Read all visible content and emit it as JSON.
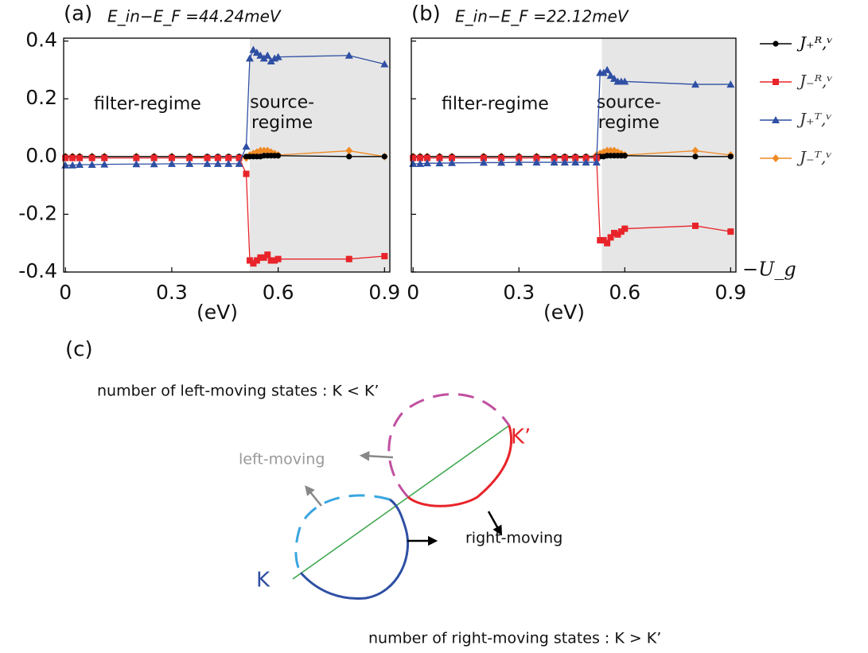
{
  "chart_data": [
    {
      "type": "line",
      "panel": "(a)",
      "title": "E_in−E_F =44.24meV",
      "x": [
        0,
        0.02,
        0.04,
        0.075,
        0.11,
        0.2,
        0.25,
        0.3,
        0.35,
        0.4,
        0.43,
        0.46,
        0.49,
        0.51,
        0.52,
        0.53,
        0.54,
        0.55,
        0.56,
        0.57,
        0.58,
        0.59,
        0.6,
        0.8,
        0.9
      ],
      "series": [
        {
          "color": "#000000",
          "marker": "circle",
          "values": [
            0,
            0,
            0,
            0,
            0,
            0,
            0,
            0,
            0,
            0,
            0,
            0,
            0,
            0,
            0,
            0,
            0,
            0,
            0.003,
            0.003,
            0.003,
            0.003,
            0.003,
            0,
            0
          ]
        },
        {
          "color": "#e8242a",
          "marker": "square",
          "values": [
            -0.005,
            -0.005,
            -0.005,
            -0.005,
            -0.005,
            -0.005,
            -0.005,
            -0.005,
            -0.005,
            -0.005,
            -0.005,
            -0.005,
            -0.005,
            -0.06,
            -0.36,
            -0.37,
            -0.36,
            -0.35,
            -0.35,
            -0.34,
            -0.36,
            -0.36,
            -0.355,
            -0.355,
            -0.345
          ]
        },
        {
          "color": "#2e4fa3",
          "marker": "triangle",
          "values": [
            -0.03,
            -0.03,
            -0.028,
            -0.028,
            -0.027,
            -0.026,
            -0.026,
            -0.025,
            -0.025,
            -0.025,
            -0.025,
            -0.025,
            -0.025,
            0.035,
            0.34,
            0.37,
            0.36,
            0.35,
            0.34,
            0.35,
            0.33,
            0.34,
            0.345,
            0.35,
            0.32
          ]
        },
        {
          "color": "#f08a24",
          "marker": "diamond",
          "values": [
            0,
            0,
            0,
            0,
            0,
            0,
            0,
            0,
            0,
            -0.005,
            -0.005,
            -0.005,
            -0.005,
            -0.005,
            0.005,
            0.01,
            0.015,
            0.02,
            0.02,
            0.02,
            0.015,
            0.01,
            0.005,
            0.02,
            0
          ]
        }
      ],
      "xlim": [
        -0.005,
        0.915
      ],
      "xticks": [
        0,
        0.3,
        0.6,
        0.9
      ],
      "x_label": "(eV)",
      "ylim": [
        -0.4,
        0.41
      ],
      "yticks": [
        {
          "value": -0.4,
          "label": "-0.4"
        },
        {
          "value": -0.2,
          "label": "-0.2"
        },
        {
          "value": 0,
          "label": "0.0"
        },
        0.2,
        0.4
      ],
      "ytick_labels": true,
      "shaded_region": [
        0.52,
        0.915
      ],
      "annotations": [
        "filter-regime",
        "source-",
        "regime"
      ]
    },
    {
      "type": "line",
      "panel": "(b)",
      "title": "E_in−E_F =22.12meV",
      "x": [
        0,
        0.02,
        0.04,
        0.075,
        0.11,
        0.2,
        0.25,
        0.3,
        0.35,
        0.4,
        0.43,
        0.46,
        0.49,
        0.52,
        0.53,
        0.54,
        0.55,
        0.56,
        0.57,
        0.58,
        0.59,
        0.6,
        0.8,
        0.9
      ],
      "series": [
        {
          "name": "J₊ᴿ,ᵛ",
          "color": "#000000",
          "marker": "circle",
          "values": [
            0,
            0,
            0,
            0,
            0,
            0,
            0,
            0,
            0,
            0,
            0,
            0,
            0,
            0,
            0,
            0,
            0.003,
            0.003,
            0.003,
            0.003,
            0.003,
            0.003,
            0,
            0
          ]
        },
        {
          "name": "J₋ᴿ,ᵛ",
          "color": "#e8242a",
          "marker": "square",
          "values": [
            -0.005,
            -0.005,
            -0.005,
            -0.005,
            -0.005,
            -0.005,
            -0.005,
            -0.005,
            -0.005,
            -0.005,
            -0.005,
            -0.005,
            -0.005,
            -0.005,
            -0.29,
            -0.29,
            -0.3,
            -0.28,
            -0.265,
            -0.27,
            -0.26,
            -0.25,
            -0.24,
            -0.26
          ]
        },
        {
          "name": "J₊ᵀ,ᵛ",
          "color": "#2e4fa3",
          "marker": "triangle",
          "values": [
            -0.025,
            -0.025,
            -0.023,
            -0.023,
            -0.022,
            -0.021,
            -0.021,
            -0.02,
            -0.02,
            -0.02,
            -0.02,
            -0.02,
            -0.02,
            -0.02,
            0.29,
            0.29,
            0.3,
            0.28,
            0.27,
            0.26,
            0.26,
            0.26,
            0.25,
            0.25
          ]
        },
        {
          "name": "J₋ᵀ,ᵛ",
          "color": "#f08a24",
          "marker": "diamond",
          "values": [
            0,
            0,
            0,
            0,
            0,
            0,
            0,
            0,
            0,
            -0.003,
            -0.003,
            -0.003,
            -0.003,
            0.005,
            0.01,
            0.015,
            0.02,
            0.02,
            0.02,
            0.015,
            0.01,
            0.005,
            0.02,
            0.005
          ]
        }
      ],
      "xlim": [
        -0.005,
        0.915
      ],
      "xticks": [
        0,
        0.3,
        0.6,
        0.9
      ],
      "x_label": "(eV)",
      "x_quantity": "−U_g",
      "ylim": [
        -0.4,
        0.41
      ],
      "yticks": [
        {
          "value": -0.4,
          "label": "-0.4"
        },
        {
          "value": -0.2,
          "label": "-0.2"
        },
        {
          "value": 0,
          "label": "0.0"
        },
        0.2,
        0.4
      ],
      "ytick_labels": false,
      "shaded_region": [
        0.535,
        0.915
      ],
      "annotations": [
        "filter-regime",
        "source-",
        "regime"
      ],
      "legend": "outside right"
    }
  ],
  "diagram": {
    "panel": "(c)",
    "top_caption": "number of left-moving states : K < K’",
    "left_label": "left-moving",
    "kprime": "K’",
    "right_label": "right-moving",
    "k": "K",
    "bottom_caption": "number of right-moving states : K > K’"
  }
}
